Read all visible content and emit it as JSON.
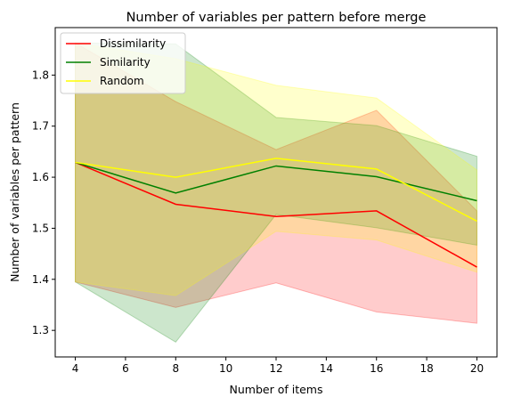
{
  "chart_data": {
    "type": "line",
    "title": "Number of variables per pattern before merge",
    "xlabel": "Number of items",
    "ylabel": "Number of variables per pattern",
    "x": [
      4,
      8,
      12,
      16,
      20
    ],
    "xlim": [
      3.2,
      20.8
    ],
    "ylim": [
      1.248,
      1.893
    ],
    "xticks": [
      4,
      6,
      8,
      10,
      12,
      14,
      16,
      18,
      20
    ],
    "yticks": [
      1.3,
      1.4,
      1.5,
      1.6,
      1.7,
      1.8
    ],
    "ytick_labels": [
      "1.3",
      "1.4",
      "1.5",
      "1.6",
      "1.7",
      "1.8"
    ],
    "grid": false,
    "legend_position": "top-left",
    "series": [
      {
        "name": "Dissimilarity",
        "color": "#ff0000",
        "values": [
          1.629,
          1.547,
          1.523,
          1.534,
          1.424
        ],
        "lower": [
          1.395,
          1.345,
          1.393,
          1.336,
          1.314
        ],
        "upper": [
          1.863,
          1.748,
          1.654,
          1.731,
          1.534
        ]
      },
      {
        "name": "Similarity",
        "color": "#008000",
        "values": [
          1.629,
          1.569,
          1.622,
          1.601,
          1.554
        ],
        "lower": [
          1.395,
          1.277,
          1.527,
          1.501,
          1.467
        ],
        "upper": [
          1.863,
          1.861,
          1.717,
          1.701,
          1.641
        ]
      },
      {
        "name": "Random",
        "color": "#ffff00",
        "values": [
          1.629,
          1.6,
          1.637,
          1.616,
          1.514
        ],
        "lower": [
          1.395,
          1.368,
          1.494,
          1.477,
          1.414
        ],
        "upper": [
          1.863,
          1.832,
          1.78,
          1.755,
          1.614
        ]
      }
    ]
  }
}
